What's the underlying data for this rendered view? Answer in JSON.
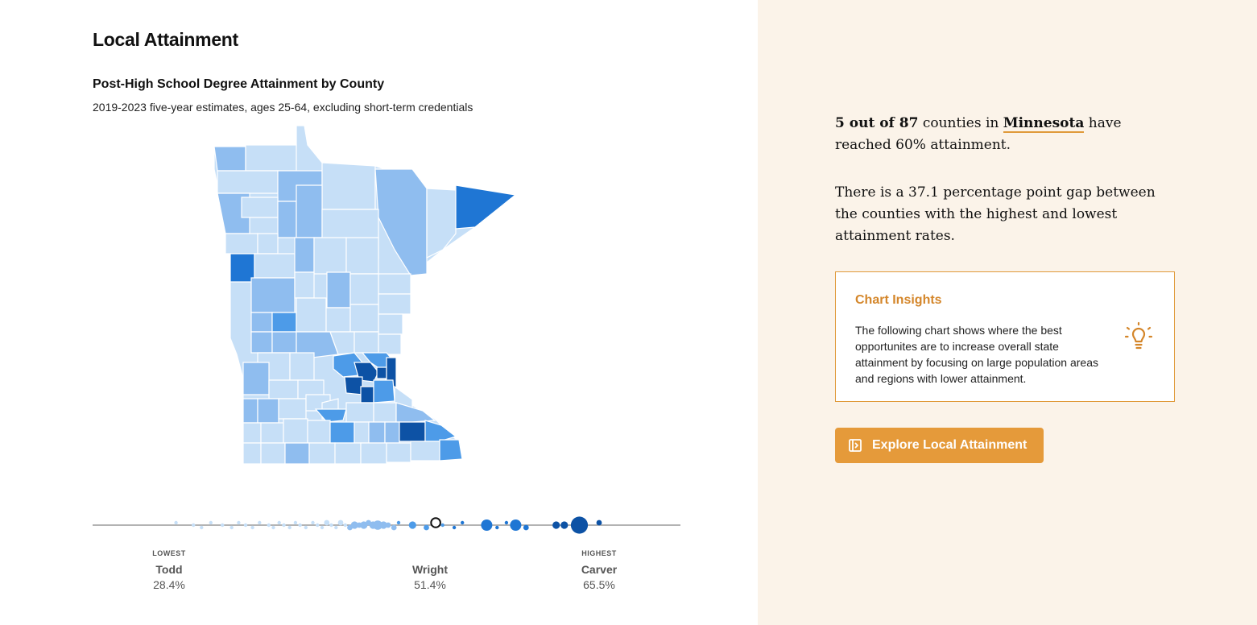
{
  "header": {
    "section_title": "Local Attainment"
  },
  "chart": {
    "title": "Post-High School Degree Attainment by County",
    "subtitle": "2019-2023 five-year estimates, ages 25-64, excluding short-term credentials"
  },
  "colors": {
    "lightest": "#c6dff7",
    "light": "#8fbdef",
    "medium": "#4d9be8",
    "strong": "#1f76d4",
    "darkest": "#0d52a5",
    "accent": "#e59a3a",
    "panel_bg": "#fbf3e9"
  },
  "chart_data": {
    "type": "scatter",
    "description_axis": "attainment percent (strip plot of counties)",
    "xlim": [
      28.4,
      65.5
    ],
    "markers": [
      {
        "tag": "LOWEST",
        "county": "Todd",
        "value_label": "28.4%",
        "value": 28.4
      },
      {
        "tag": "",
        "county": "Wright",
        "value_label": "51.4%",
        "value": 51.4
      },
      {
        "tag": "HIGHEST",
        "county": "Carver",
        "value_label": "65.5%",
        "value": 65.5
      }
    ],
    "points": [
      {
        "x": 29.0,
        "s": 1
      },
      {
        "x": 30.5,
        "s": 1
      },
      {
        "x": 31.2,
        "s": 1
      },
      {
        "x": 32.0,
        "s": 1
      },
      {
        "x": 33.0,
        "s": 1
      },
      {
        "x": 33.8,
        "s": 1
      },
      {
        "x": 34.4,
        "s": 1
      },
      {
        "x": 35.0,
        "s": 1
      },
      {
        "x": 35.6,
        "s": 1
      },
      {
        "x": 36.2,
        "s": 1
      },
      {
        "x": 37.0,
        "s": 1
      },
      {
        "x": 37.4,
        "s": 1
      },
      {
        "x": 37.9,
        "s": 1
      },
      {
        "x": 38.3,
        "s": 1
      },
      {
        "x": 38.8,
        "s": 1
      },
      {
        "x": 39.3,
        "s": 1
      },
      {
        "x": 39.7,
        "s": 1
      },
      {
        "x": 40.2,
        "s": 1
      },
      {
        "x": 40.8,
        "s": 1
      },
      {
        "x": 41.2,
        "s": 1
      },
      {
        "x": 41.6,
        "s": 1
      },
      {
        "x": 42.0,
        "s": 2
      },
      {
        "x": 42.4,
        "s": 1
      },
      {
        "x": 42.8,
        "s": 1
      },
      {
        "x": 43.2,
        "s": 2
      },
      {
        "x": 43.6,
        "s": 1
      },
      {
        "x": 44.0,
        "s": 2
      },
      {
        "x": 44.4,
        "s": 3
      },
      {
        "x": 44.8,
        "s": 2
      },
      {
        "x": 45.2,
        "s": 3
      },
      {
        "x": 45.6,
        "s": 2
      },
      {
        "x": 46.0,
        "s": 3
      },
      {
        "x": 46.4,
        "s": 4
      },
      {
        "x": 46.9,
        "s": 3
      },
      {
        "x": 47.3,
        "s": 2
      },
      {
        "x": 47.8,
        "s": 2
      },
      {
        "x": 48.2,
        "s": 1
      },
      {
        "x": 49.4,
        "s": 3
      },
      {
        "x": 50.6,
        "s": 2
      },
      {
        "x": 51.4,
        "s": 4,
        "highlight": true
      },
      {
        "x": 52.0,
        "s": 1
      },
      {
        "x": 53.0,
        "s": 1
      },
      {
        "x": 53.7,
        "s": 1
      },
      {
        "x": 55.8,
        "s": 5
      },
      {
        "x": 56.7,
        "s": 1
      },
      {
        "x": 57.5,
        "s": 1
      },
      {
        "x": 58.3,
        "s": 5
      },
      {
        "x": 59.2,
        "s": 2
      },
      {
        "x": 61.8,
        "s": 3
      },
      {
        "x": 62.5,
        "s": 3
      },
      {
        "x": 63.8,
        "s": 8
      },
      {
        "x": 65.5,
        "s": 2
      }
    ]
  },
  "summary": {
    "count_text": "5 out of 87",
    "middle_text": " counties in ",
    "state_link": "Minnesota",
    "end_text": " have reached 60% attainment.",
    "gap_text": "There is a 37.1 percentage point gap between the counties with the highest and lowest attainment rates."
  },
  "insights": {
    "title": "Chart Insights",
    "body": "The following chart shows where the best opportunites are to increase overall state attainment by focusing on large population areas and regions with lower attainment.",
    "icon": "lightbulb-icon"
  },
  "cta": {
    "label": "Explore Local Attainment",
    "icon": "open-panel-icon"
  }
}
